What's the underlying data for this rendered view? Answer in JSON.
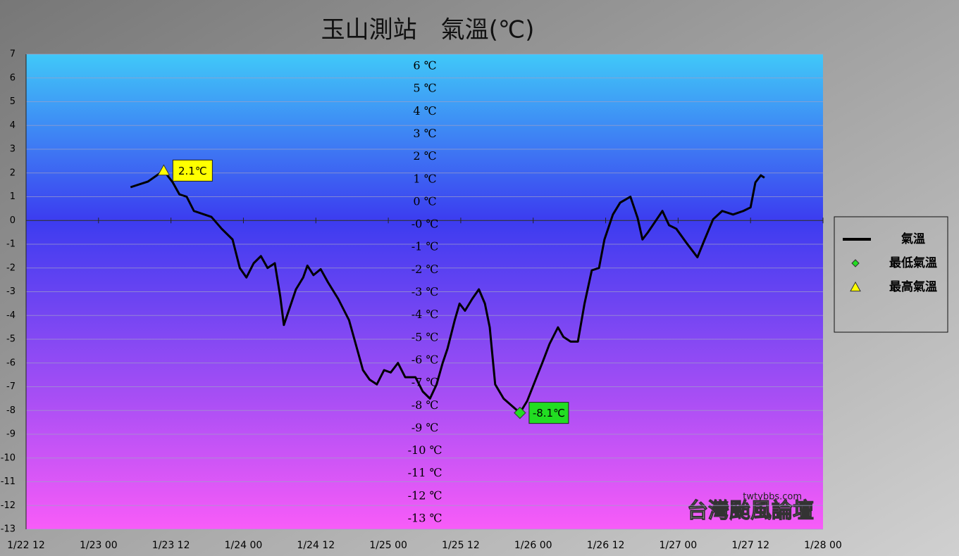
{
  "chart_data": {
    "type": "line",
    "title": "玉山測站　氣溫(℃)",
    "xlim": [
      0,
      132
    ],
    "xticks": [
      {
        "value": 0,
        "label": "1/22 12"
      },
      {
        "value": 12,
        "label": "1/23 00"
      },
      {
        "value": 24,
        "label": "1/23 12"
      },
      {
        "value": 36,
        "label": "1/24 00"
      },
      {
        "value": 48,
        "label": "1/24 12"
      },
      {
        "value": 60,
        "label": "1/25 00"
      },
      {
        "value": 72,
        "label": "1/25 12"
      },
      {
        "value": 84,
        "label": "1/26 00"
      },
      {
        "value": 96,
        "label": "1/26 12"
      },
      {
        "value": 108,
        "label": "1/27 00"
      },
      {
        "value": 120,
        "label": "1/27 12"
      },
      {
        "value": 132,
        "label": "1/28 00"
      }
    ],
    "ylim": [
      -13,
      7
    ],
    "yticks": [
      7,
      6,
      5,
      4,
      3,
      2,
      1,
      0,
      -1,
      -2,
      -3,
      -4,
      -5,
      -6,
      -7,
      -8,
      -9,
      -10,
      -11,
      -12,
      -13
    ],
    "grid": true,
    "annotations": [
      "6 ℃",
      "5 ℃",
      "4 ℃",
      "3 ℃",
      "2 ℃",
      "1 ℃",
      "0 ℃",
      "-0 ℃",
      "-1 ℃",
      "-2 ℃",
      "-3 ℃",
      "-4 ℃",
      "-5 ℃",
      "-6 ℃",
      "-7 ℃",
      "-8 ℃",
      "-9 ℃",
      "-10 ℃",
      "-11 ℃",
      "-12 ℃",
      "-13 ℃"
    ],
    "watermark": [
      "twtybbs.com",
      "台灣颱風論壇"
    ],
    "series": [
      {
        "name": "氣溫",
        "color": "#000000",
        "x": [
          17.3,
          20.2,
          22.8,
          24.3,
          25.4,
          26.6,
          27.8,
          30.7,
          32.4,
          34.2,
          35.4,
          36.5,
          37.7,
          38.9,
          40.0,
          41.2,
          42.1,
          42.7,
          43.5,
          44.7,
          45.9,
          46.6,
          47.6,
          48.8,
          50.0,
          51.7,
          53.5,
          54.6,
          55.8,
          56.9,
          58.1,
          59.3,
          60.4,
          61.6,
          62.8,
          64.5,
          65.7,
          66.9,
          68.0,
          69.0,
          69.8,
          71.0,
          71.8,
          72.7,
          73.9,
          75.0,
          76.0,
          76.8,
          77.7,
          79.1,
          80.9,
          81.8,
          83.0,
          84.4,
          85.5,
          86.7,
          88.1,
          89.0,
          90.2,
          91.4,
          92.5,
          93.7,
          94.9,
          95.8,
          97.2,
          98.4,
          100.1,
          101.3,
          102.1,
          103.0,
          104.2,
          105.4,
          106.5,
          107.7,
          109.4,
          111.2,
          112.4,
          113.8,
          115.3,
          117.1,
          118.8,
          120.0,
          120.8,
          121.7,
          122.3
        ],
        "values": [
          1.4,
          1.64,
          2.1,
          1.6,
          1.1,
          1.0,
          0.4,
          0.15,
          -0.35,
          -0.8,
          -2.0,
          -2.4,
          -1.8,
          -1.5,
          -2.0,
          -1.8,
          -3.2,
          -4.4,
          -3.8,
          -2.9,
          -2.4,
          -1.9,
          -2.3,
          -2.05,
          -2.6,
          -3.3,
          -4.2,
          -5.2,
          -6.3,
          -6.7,
          -6.9,
          -6.3,
          -6.4,
          -6.0,
          -6.6,
          -6.6,
          -7.2,
          -7.5,
          -6.9,
          -6.0,
          -5.4,
          -4.2,
          -3.5,
          -3.8,
          -3.3,
          -2.9,
          -3.5,
          -4.5,
          -6.9,
          -7.5,
          -7.9,
          -8.1,
          -7.6,
          -6.7,
          -6.0,
          -5.2,
          -4.5,
          -4.9,
          -5.1,
          -5.1,
          -3.5,
          -2.1,
          -2.0,
          -0.8,
          0.25,
          0.75,
          1.0,
          0.1,
          -0.8,
          -0.5,
          -0.05,
          0.4,
          -0.2,
          -0.35,
          -0.95,
          -1.55,
          -0.8,
          0.05,
          0.4,
          0.25,
          0.4,
          0.55,
          1.6,
          1.9,
          1.8
        ]
      },
      {
        "name": "最低氣溫",
        "color": "#22dd22",
        "x": [
          81.8
        ],
        "values": [
          -8.1
        ],
        "value_labels": [
          "-8.1℃"
        ]
      },
      {
        "name": "最高氣溫",
        "color": "#ffff00",
        "x": [
          22.8
        ],
        "values": [
          2.1
        ],
        "value_labels": [
          "2.1℃"
        ]
      }
    ]
  }
}
